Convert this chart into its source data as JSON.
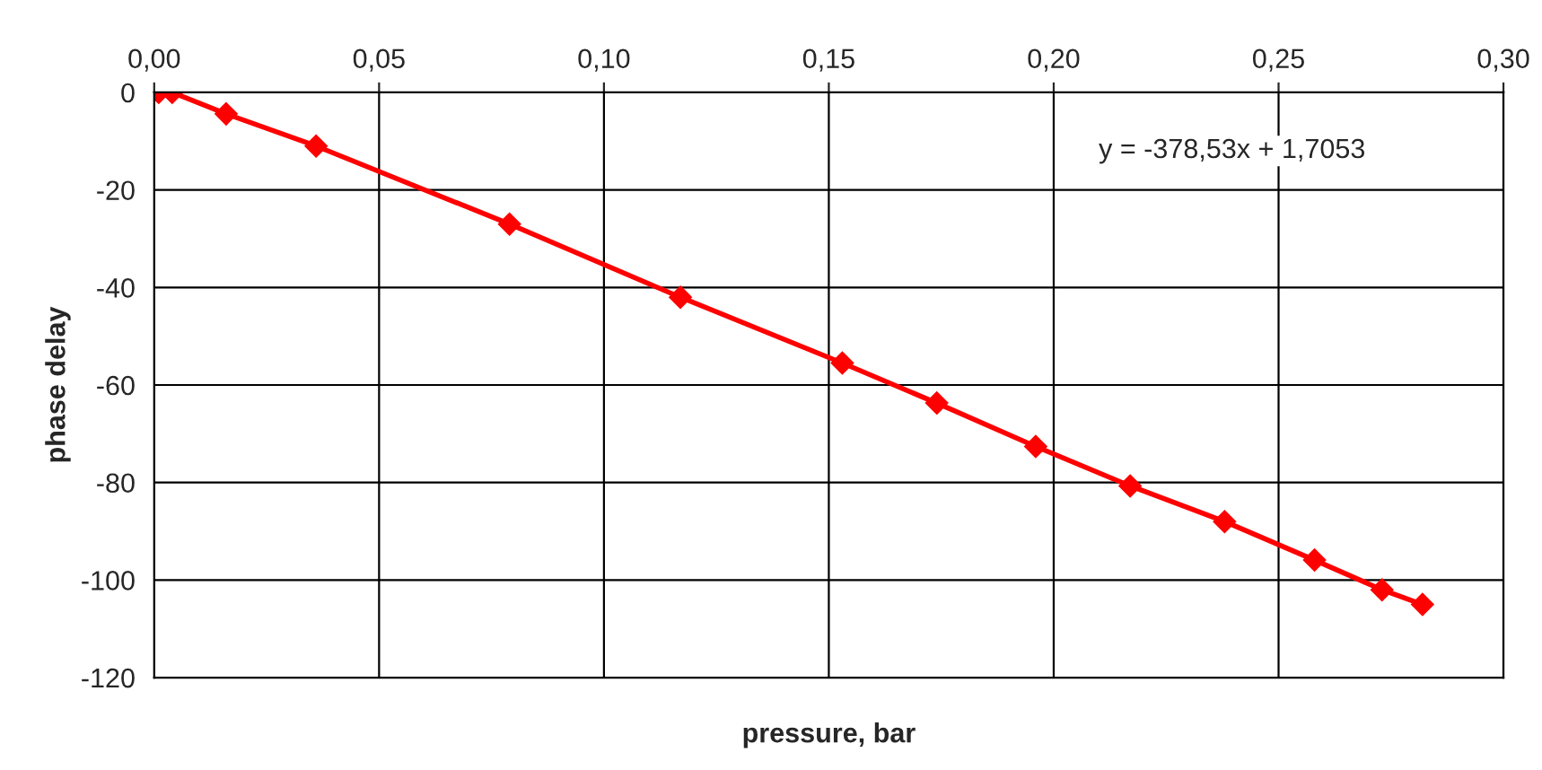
{
  "chart_data": {
    "type": "line",
    "xlabel": "pressure, bar",
    "ylabel": "phase delay",
    "x": [
      0.001,
      0.004,
      0.016,
      0.036,
      0.079,
      0.117,
      0.153,
      0.174,
      0.196,
      0.217,
      0.238,
      0.258,
      0.273,
      0.282
    ],
    "series": [
      {
        "color": "#ff0000",
        "values": [
          0,
          0,
          -4.4,
          -11,
          -27,
          -42,
          -55.5,
          -63.7,
          -72.6,
          -80.7,
          -88,
          -95.9,
          -102,
          -105
        ]
      }
    ],
    "xlim": [
      0,
      0.3
    ],
    "xticks": [
      {
        "value": 0,
        "label": "0,00"
      },
      {
        "value": 0.05,
        "label": "0,05"
      },
      {
        "value": 0.1,
        "label": "0,10"
      },
      {
        "value": 0.15,
        "label": "0,15"
      },
      {
        "value": 0.2,
        "label": "0,20"
      },
      {
        "value": 0.25,
        "label": "0,25"
      },
      {
        "value": 0.3,
        "label": "0,30"
      }
    ],
    "ylim": [
      -120,
      0
    ],
    "yticks": [
      -120,
      -100,
      -80,
      -60,
      -40,
      -20,
      0
    ],
    "annotations": [
      "y = -378,53x + 1,7053"
    ],
    "grid": true,
    "marker": "diamond",
    "line_style": "solid",
    "legend": false
  }
}
